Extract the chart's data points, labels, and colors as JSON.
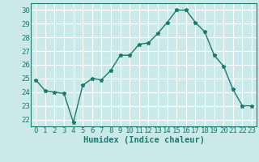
{
  "x": [
    0,
    1,
    2,
    3,
    4,
    5,
    6,
    7,
    8,
    9,
    10,
    11,
    12,
    13,
    14,
    15,
    16,
    17,
    18,
    19,
    20,
    21,
    22,
    23
  ],
  "y": [
    24.9,
    24.1,
    24.0,
    23.9,
    21.8,
    24.5,
    25.0,
    24.9,
    25.6,
    26.7,
    26.7,
    27.5,
    27.6,
    28.3,
    29.1,
    30.0,
    30.0,
    29.1,
    28.4,
    26.7,
    25.9,
    24.2,
    23.0,
    23.0
  ],
  "line_color": "#1a7a6e",
  "marker": "*",
  "marker_size": 3.5,
  "xlabel": "Humidex (Indice chaleur)",
  "ylim": [
    21.5,
    30.5
  ],
  "xlim": [
    -0.5,
    23.5
  ],
  "yticks": [
    22,
    23,
    24,
    25,
    26,
    27,
    28,
    29,
    30
  ],
  "xticks": [
    0,
    1,
    2,
    3,
    4,
    5,
    6,
    7,
    8,
    9,
    10,
    11,
    12,
    13,
    14,
    15,
    16,
    17,
    18,
    19,
    20,
    21,
    22,
    23
  ],
  "bg_color": "#cce9ea",
  "grid_color": "#ffffff",
  "tick_fontsize": 6.5,
  "xlabel_fontsize": 7.5,
  "line_width": 1.0
}
